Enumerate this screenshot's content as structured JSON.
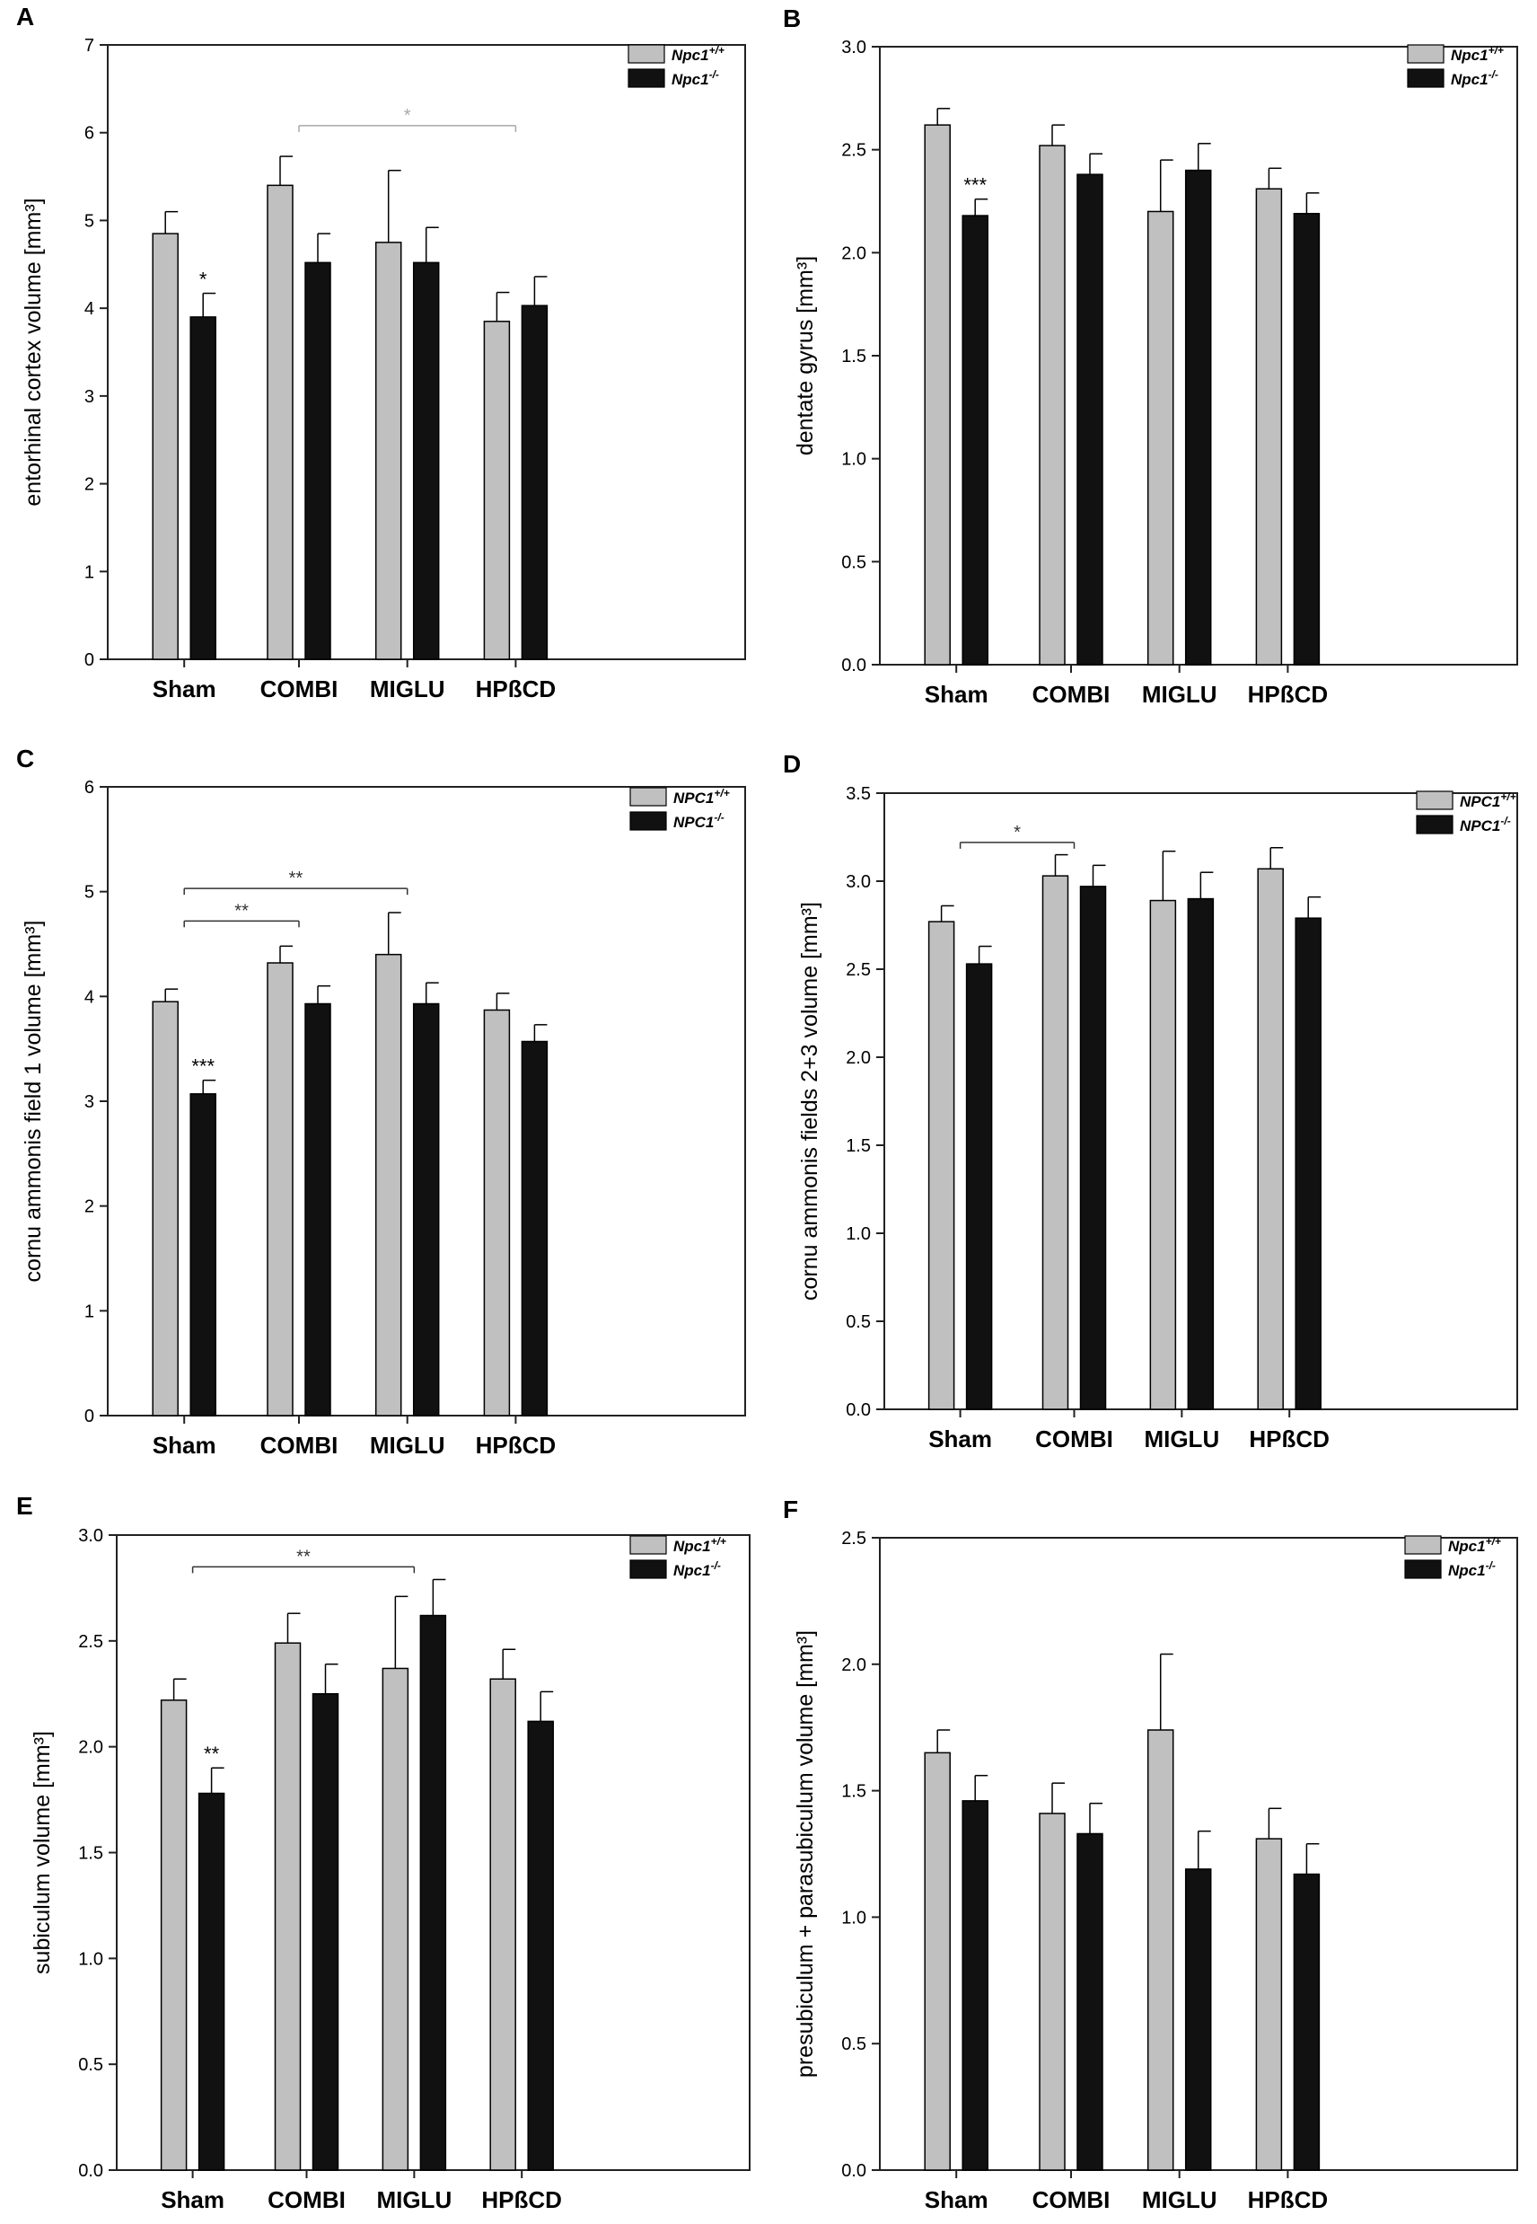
{
  "colors": {
    "wt": "#c0c0c0",
    "ko": "#111111",
    "axis": "#222222",
    "sig_gray": "#a8a8a8"
  },
  "chart_data": [
    {
      "panel": "A",
      "type": "bar",
      "ylabel": "entorhinal cortex volume [mm³]",
      "ylim": [
        0,
        7
      ],
      "yticks": [
        0,
        1,
        2,
        3,
        4,
        5,
        6,
        7
      ],
      "tick_decimals": 0,
      "categories": [
        "Sham",
        "COMBI",
        "MIGLU",
        "HPßCD"
      ],
      "legend": [
        {
          "base": "Npc1",
          "sup": "+/+"
        },
        {
          "base": "Npc1",
          "sup": "-/-"
        }
      ],
      "series": [
        {
          "name": "Npc1+/+",
          "values": [
            4.85,
            5.4,
            4.75,
            3.85
          ],
          "errors": [
            0.25,
            0.33,
            0.82,
            0.33
          ]
        },
        {
          "name": "Npc1-/-",
          "values": [
            3.9,
            4.52,
            4.52,
            4.03
          ],
          "errors": [
            0.27,
            0.33,
            0.4,
            0.33
          ]
        }
      ],
      "annotations": [
        {
          "text": "*",
          "cat": 0,
          "series": 1
        }
      ],
      "brackets": [
        {
          "from": 1,
          "to": 3,
          "y": 6.08,
          "text": "*",
          "color": "gray"
        }
      ]
    },
    {
      "panel": "B",
      "type": "bar",
      "ylabel": "dentate gyrus [mm³]",
      "ylim": [
        0,
        3.0
      ],
      "yticks": [
        0,
        0.5,
        1.0,
        1.5,
        2.0,
        2.5,
        3.0
      ],
      "tick_decimals": 1,
      "categories": [
        "Sham",
        "COMBI",
        "MIGLU",
        "HPßCD"
      ],
      "legend": [
        {
          "base": "Npc1",
          "sup": "+/+"
        },
        {
          "base": "Npc1",
          "sup": "-/-"
        }
      ],
      "series": [
        {
          "name": "Npc1+/+",
          "values": [
            2.62,
            2.52,
            2.2,
            2.31
          ],
          "errors": [
            0.08,
            0.1,
            0.25,
            0.1
          ]
        },
        {
          "name": "Npc1-/-",
          "values": [
            2.18,
            2.38,
            2.4,
            2.19
          ],
          "errors": [
            0.08,
            0.1,
            0.13,
            0.1
          ]
        }
      ],
      "annotations": [
        {
          "text": "***",
          "cat": 0,
          "series": 1
        }
      ],
      "brackets": []
    },
    {
      "panel": "C",
      "type": "bar",
      "ylabel": "cornu ammonis field 1 volume [mm³]",
      "ylim": [
        0,
        6
      ],
      "yticks": [
        0,
        1,
        2,
        3,
        4,
        5,
        6
      ],
      "tick_decimals": 0,
      "categories": [
        "Sham",
        "COMBI",
        "MIGLU",
        "HPßCD"
      ],
      "legend": [
        {
          "base": "NPC1",
          "sup": "+/+"
        },
        {
          "base": "NPC1",
          "sup": "-/-"
        }
      ],
      "series": [
        {
          "name": "NPC1+/+",
          "values": [
            3.95,
            4.32,
            4.4,
            3.87
          ],
          "errors": [
            0.12,
            0.16,
            0.4,
            0.16
          ]
        },
        {
          "name": "NPC1-/-",
          "values": [
            3.07,
            3.93,
            3.93,
            3.57
          ],
          "errors": [
            0.13,
            0.17,
            0.2,
            0.16
          ]
        }
      ],
      "annotations": [
        {
          "text": "***",
          "cat": 0,
          "series": 1
        }
      ],
      "brackets": [
        {
          "from": 0,
          "to": 1,
          "y": 4.72,
          "text": "**",
          "color": "dark"
        },
        {
          "from": 0,
          "to": 2,
          "y": 5.03,
          "text": "**",
          "color": "dark"
        }
      ]
    },
    {
      "panel": "D",
      "type": "bar",
      "ylabel": "cornu ammonis fields 2+3 volume [mm³]",
      "ylim": [
        0,
        3.5
      ],
      "yticks": [
        0,
        0.5,
        1.0,
        1.5,
        2.0,
        2.5,
        3.0,
        3.5
      ],
      "tick_decimals": 1,
      "categories": [
        "Sham",
        "COMBI",
        "MIGLU",
        "HPßCD"
      ],
      "legend": [
        {
          "base": "NPC1",
          "sup": "+/+"
        },
        {
          "base": "NPC1",
          "sup": "-/-"
        }
      ],
      "series": [
        {
          "name": "NPC1+/+",
          "values": [
            2.77,
            3.03,
            2.89,
            3.07
          ],
          "errors": [
            0.09,
            0.12,
            0.28,
            0.12
          ]
        },
        {
          "name": "NPC1-/-",
          "values": [
            2.53,
            2.97,
            2.9,
            2.79
          ],
          "errors": [
            0.1,
            0.12,
            0.15,
            0.12
          ]
        }
      ],
      "annotations": [],
      "brackets": [
        {
          "from": 0,
          "to": 1,
          "y": 3.22,
          "text": "*",
          "color": "dark"
        }
      ]
    },
    {
      "panel": "E",
      "type": "bar",
      "ylabel": "subiculum volume [mm³]",
      "ylim": [
        0,
        3.0
      ],
      "yticks": [
        0,
        0.5,
        1.0,
        1.5,
        2.0,
        2.5,
        3.0
      ],
      "tick_decimals": 1,
      "categories": [
        "Sham",
        "COMBI",
        "MIGLU",
        "HPßCD"
      ],
      "legend": [
        {
          "base": "Npc1",
          "sup": "+/+"
        },
        {
          "base": "Npc1",
          "sup": "-/-"
        }
      ],
      "series": [
        {
          "name": "Npc1+/+",
          "values": [
            2.22,
            2.49,
            2.37,
            2.32
          ],
          "errors": [
            0.1,
            0.14,
            0.34,
            0.14
          ]
        },
        {
          "name": "Npc1-/-",
          "values": [
            1.78,
            2.25,
            2.62,
            2.12
          ],
          "errors": [
            0.12,
            0.14,
            0.17,
            0.14
          ]
        }
      ],
      "annotations": [
        {
          "text": "**",
          "cat": 0,
          "series": 1
        }
      ],
      "brackets": [
        {
          "from": 0,
          "to": 2,
          "y": 2.85,
          "text": "**",
          "color": "dark"
        }
      ]
    },
    {
      "panel": "F",
      "type": "bar",
      "ylabel": "presubiculum + parasubiculum volume [mm³]",
      "ylim": [
        0,
        2.5
      ],
      "yticks": [
        0,
        0.5,
        1.0,
        1.5,
        2.0,
        2.5
      ],
      "tick_decimals": 1,
      "categories": [
        "Sham",
        "COMBI",
        "MIGLU",
        "HPßCD"
      ],
      "legend": [
        {
          "base": "Npc1",
          "sup": "+/+"
        },
        {
          "base": "Npc1",
          "sup": "-/-"
        }
      ],
      "series": [
        {
          "name": "Npc1+/+",
          "values": [
            1.65,
            1.41,
            1.74,
            1.31
          ],
          "errors": [
            0.09,
            0.12,
            0.3,
            0.12
          ]
        },
        {
          "name": "Npc1-/-",
          "values": [
            1.46,
            1.33,
            1.19,
            1.17
          ],
          "errors": [
            0.1,
            0.12,
            0.15,
            0.12
          ]
        }
      ],
      "annotations": [],
      "brackets": []
    }
  ]
}
